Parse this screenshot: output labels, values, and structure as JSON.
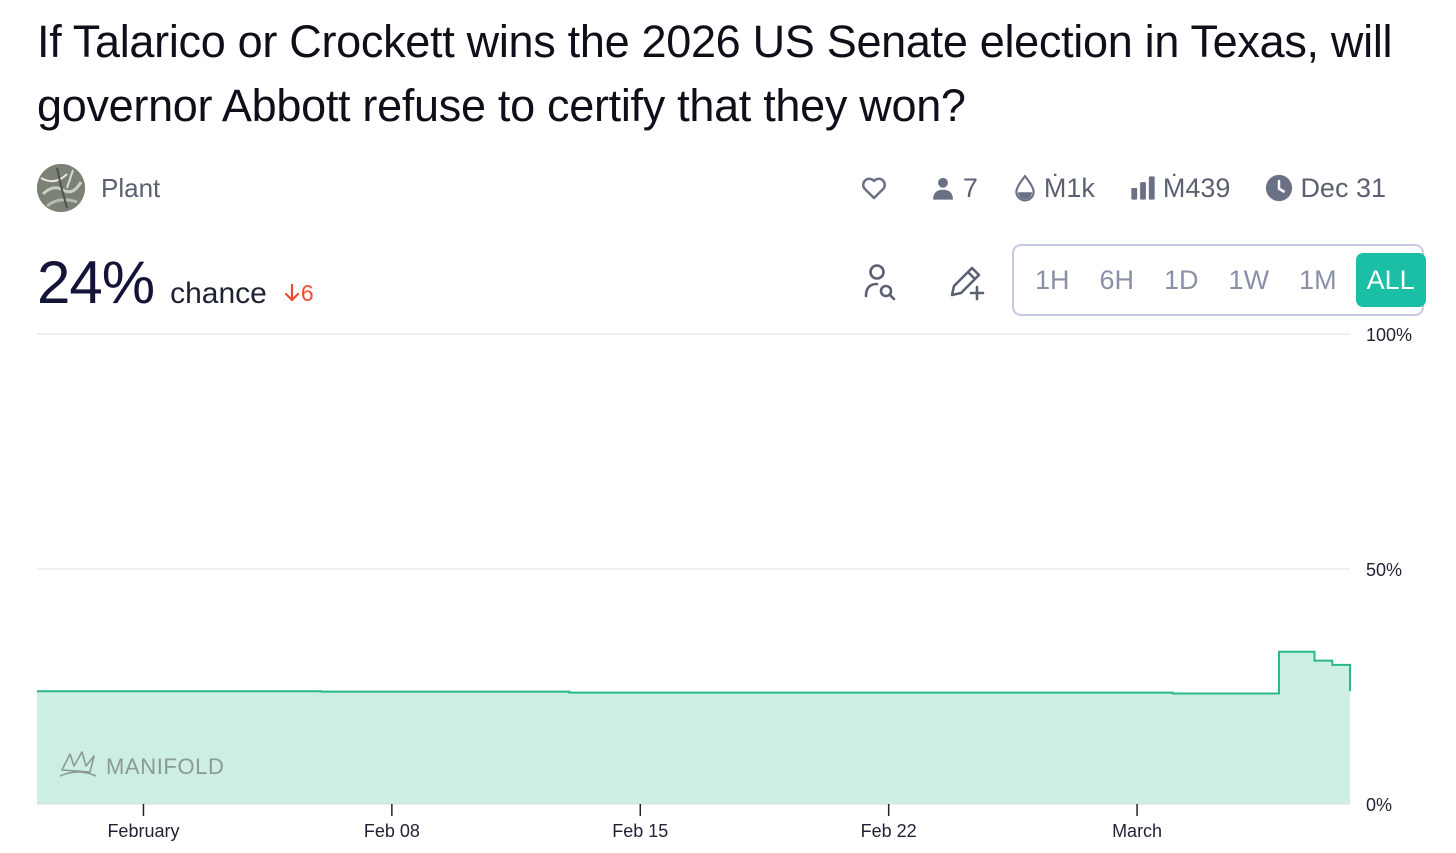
{
  "market": {
    "title": "If Talarico or Crockett wins the 2026 US Senate election in Texas, will governor Abbott refuse to certify that they won?",
    "author": "Plant"
  },
  "stats": {
    "traders": "7",
    "liquidity": "Ṁ1k",
    "volume": "Ṁ439",
    "close_date": "Dec 31"
  },
  "icons": [
    "heart-icon",
    "user-icon",
    "droplet-icon",
    "bar-chart-icon",
    "clock-icon",
    "search-user-icon",
    "edit-plus-icon",
    "manifold-logo"
  ],
  "probability": {
    "value": "24%",
    "label": "chance",
    "change": "6",
    "change_direction": "down"
  },
  "time_ranges": {
    "options": [
      "1H",
      "6H",
      "1D",
      "1W",
      "1M",
      "ALL"
    ],
    "selected": "ALL"
  },
  "colors": {
    "accent": "#1bbfa6",
    "line": "#2ab889",
    "fill": "#cdefe3",
    "down": "#ef4b2f"
  },
  "watermark": "MANIFOLD",
  "chart_data": {
    "type": "area",
    "step": true,
    "x_type": "date",
    "x": [
      "2026-01-29",
      "2026-02-06",
      "2026-02-13",
      "2026-03-02",
      "2026-03-05",
      "2026-03-06",
      "2026-03-06T12:00",
      "2026-03-07"
    ],
    "y": [
      24,
      23.9,
      23.7,
      23.5,
      32.4,
      30.5,
      29.6,
      24
    ],
    "xticks": [
      "February",
      "Feb 08",
      "Feb 15",
      "Feb 22",
      "March"
    ],
    "xtick_dates": [
      "2026-02-01",
      "2026-02-08",
      "2026-02-15",
      "2026-02-22",
      "2026-03-01"
    ],
    "yticks": [
      "0%",
      "50%",
      "100%"
    ],
    "ytick_values": [
      0,
      50,
      100
    ],
    "ylim": [
      0,
      100
    ],
    "xlim": [
      "2026-01-29",
      "2026-03-07"
    ],
    "grid": true
  }
}
